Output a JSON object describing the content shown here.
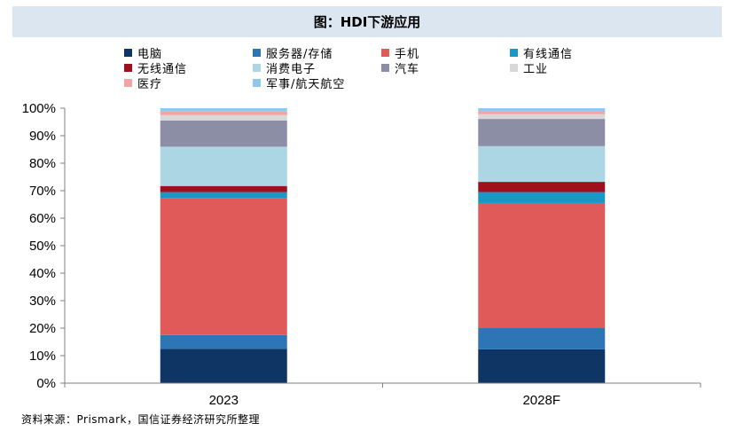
{
  "title": "图：HDI下游应用",
  "source": "资料来源：Prismark，国信证券经济研究所整理",
  "chart_data": {
    "type": "bar",
    "stacked": true,
    "categories": [
      "2023",
      "2028F"
    ],
    "ylim": [
      0,
      100
    ],
    "yticks": [
      "0%",
      "10%",
      "20%",
      "30%",
      "40%",
      "50%",
      "60%",
      "70%",
      "80%",
      "90%",
      "100%"
    ],
    "legend_position": "top",
    "series": [
      {
        "name": "电脑",
        "color": "#0e3563",
        "values": [
          12.5,
          12.3
        ]
      },
      {
        "name": "服务器/存储",
        "color": "#2e75b6",
        "values": [
          5.0,
          7.7
        ]
      },
      {
        "name": "手机",
        "color": "#e05a5a",
        "values": [
          49.8,
          45.5
        ]
      },
      {
        "name": "有线通信",
        "color": "#1b97c6",
        "values": [
          2.2,
          4.0
        ]
      },
      {
        "name": "无线通信",
        "color": "#a0101c",
        "values": [
          2.2,
          3.7
        ]
      },
      {
        "name": "消费电子",
        "color": "#add6e4",
        "values": [
          14.3,
          13.0
        ]
      },
      {
        "name": "汽车",
        "color": "#8c8ea6",
        "values": [
          9.5,
          9.9
        ]
      },
      {
        "name": "工业",
        "color": "#d8d8d8",
        "values": [
          2.0,
          1.7
        ]
      },
      {
        "name": "医疗",
        "color": "#f2a3a3",
        "values": [
          1.3,
          1.2
        ]
      },
      {
        "name": "军事/航天航空",
        "color": "#8ec8ec",
        "values": [
          1.2,
          1.0
        ]
      }
    ]
  }
}
